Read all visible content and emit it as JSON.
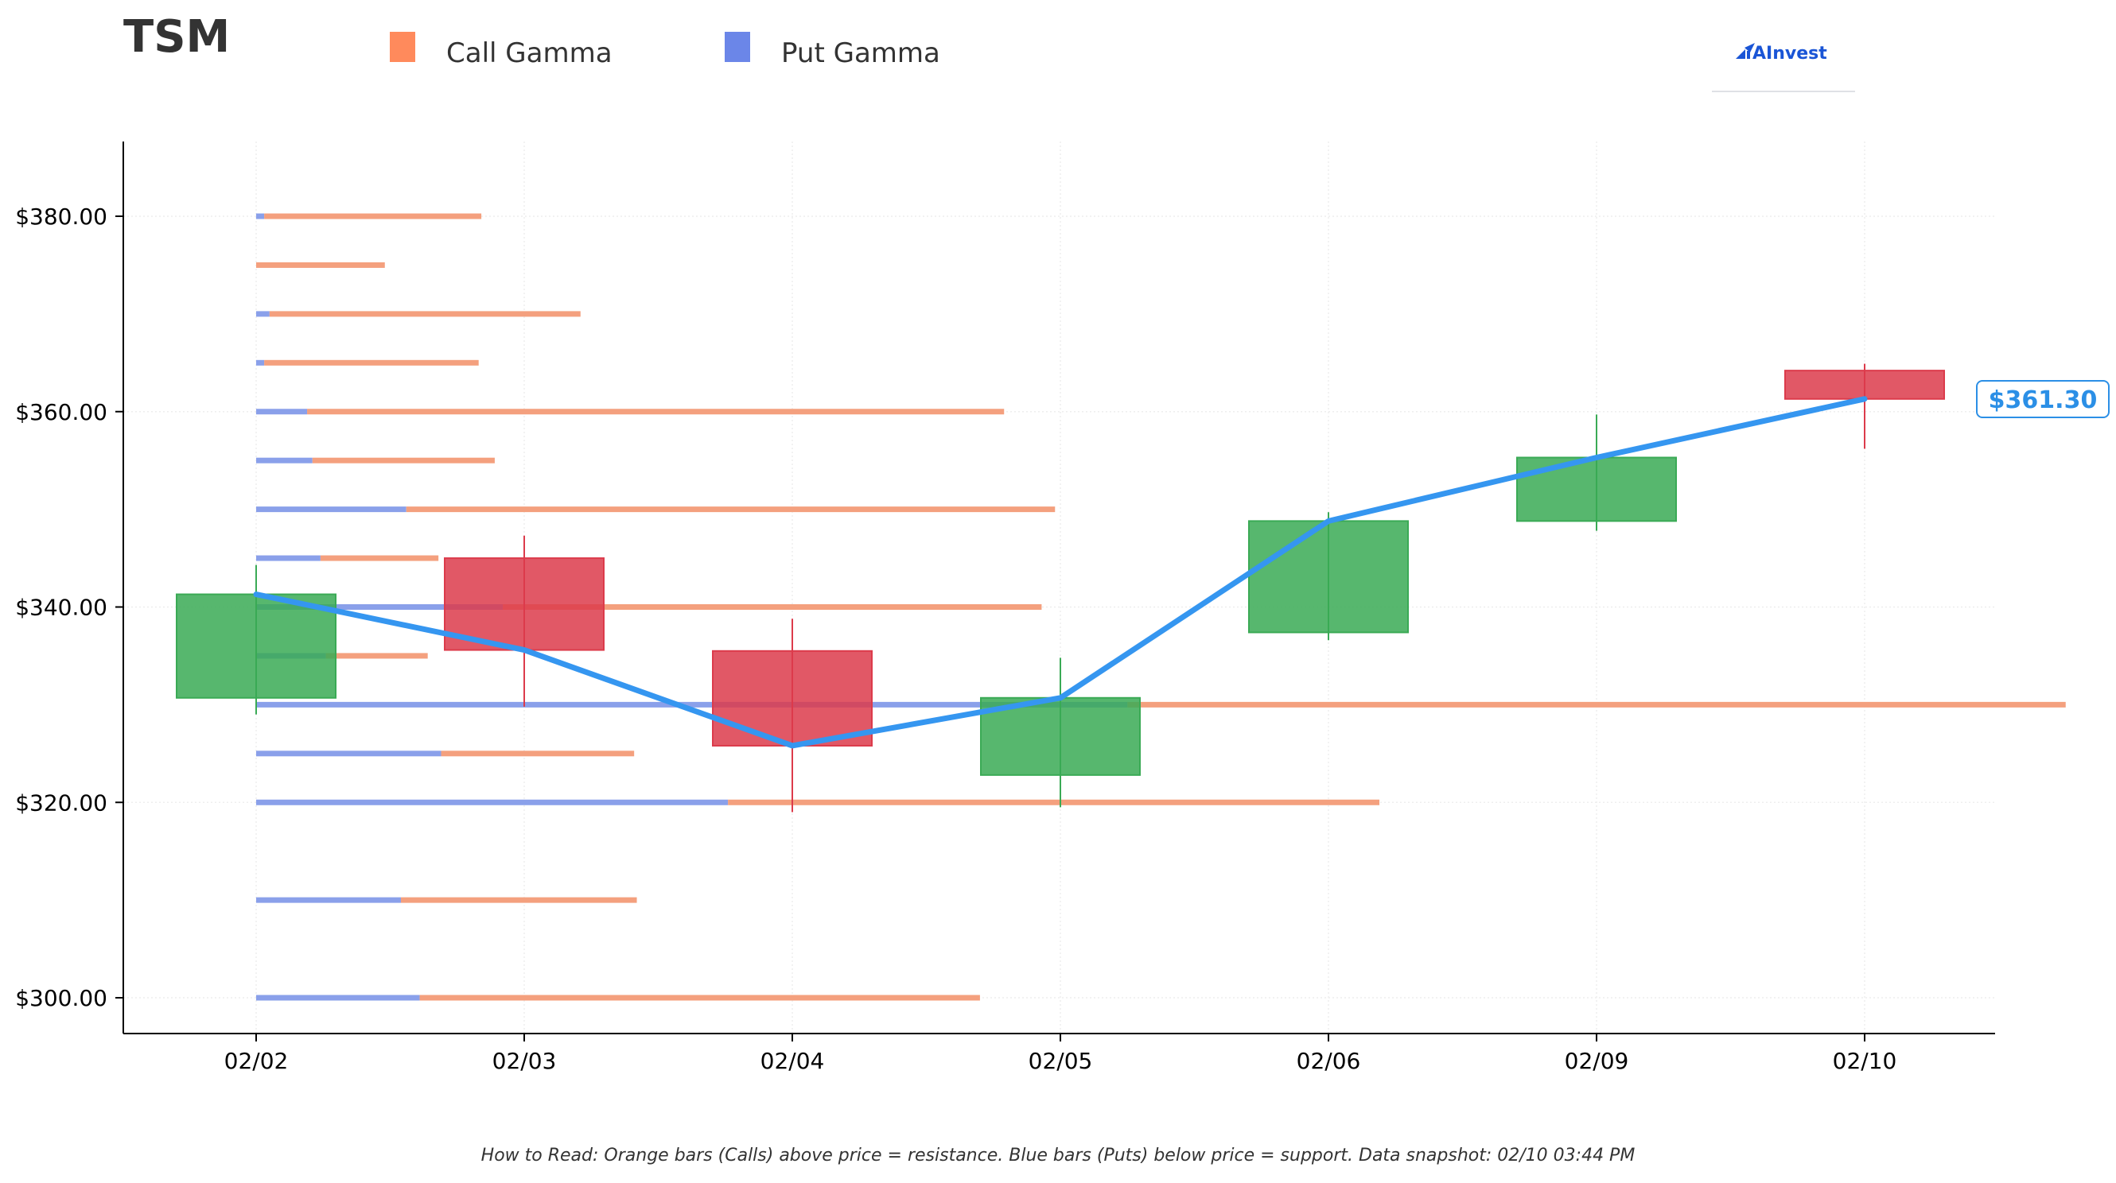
{
  "title": "TSM",
  "legend": {
    "items": [
      {
        "label": "Call Gamma",
        "color": "#ff8a5c"
      },
      {
        "label": "Put Gamma",
        "color": "#6b86e8"
      }
    ]
  },
  "logo": {
    "text": "AInvest",
    "icon": "ainvest-logo-icon",
    "color": "#1a55d6"
  },
  "price_label": "$361.30",
  "footer_note": "How to Read: Orange bars (Calls) above price = resistance. Blue bars (Puts) below price = support. Data snapshot: 02/10 03:44 PM",
  "colors": {
    "call": "#f4a07e",
    "put": "#8aa0ea",
    "up": "#3aaa55",
    "down": "#dc3b4b",
    "price_line": "#3596f0"
  },
  "chart_data": {
    "type": "candlestick",
    "categories": [
      "02/02",
      "02/03",
      "02/04",
      "02/05",
      "02/06",
      "02/09",
      "02/10"
    ],
    "ylim": [
      291,
      382
    ],
    "yticks": [
      "$300.00",
      "$320.00",
      "$340.00",
      "$360.00",
      "$380.00"
    ],
    "ytick_values": [
      300,
      320,
      340,
      360,
      380
    ],
    "grid": true,
    "candles": [
      {
        "date": "02/02",
        "open": 330.7,
        "close": 341.3,
        "high": 344.3,
        "low": 329.0
      },
      {
        "date": "02/03",
        "open": 345.0,
        "close": 335.6,
        "high": 347.3,
        "low": 329.8
      },
      {
        "date": "02/04",
        "open": 335.5,
        "close": 325.8,
        "high": 338.8,
        "low": 319.0
      },
      {
        "date": "02/05",
        "open": 322.8,
        "close": 330.7,
        "high": 334.8,
        "low": 319.5
      },
      {
        "date": "02/06",
        "open": 337.4,
        "close": 348.8,
        "high": 349.7,
        "low": 336.6
      },
      {
        "date": "02/09",
        "open": 348.8,
        "close": 355.3,
        "high": 359.7,
        "low": 347.8
      },
      {
        "date": "02/10",
        "open": 364.2,
        "close": 361.3,
        "high": 364.9,
        "low": 356.2
      }
    ],
    "price_line": {
      "name": "Price",
      "values": [
        341.3,
        335.6,
        325.8,
        330.7,
        348.8,
        355.3,
        361.3
      ]
    },
    "gamma_levels": [
      {
        "strike": 380,
        "put": 0.03,
        "call": 0.81
      },
      {
        "strike": 375,
        "put": 0.0,
        "call": 0.48
      },
      {
        "strike": 370,
        "put": 0.05,
        "call": 1.16
      },
      {
        "strike": 365,
        "put": 0.03,
        "call": 0.8
      },
      {
        "strike": 360,
        "put": 0.19,
        "call": 2.6
      },
      {
        "strike": 355,
        "put": 0.21,
        "call": 0.68
      },
      {
        "strike": 350,
        "put": 0.56,
        "call": 2.42
      },
      {
        "strike": 345,
        "put": 0.24,
        "call": 0.44
      },
      {
        "strike": 340,
        "put": 0.92,
        "call": 2.01
      },
      {
        "strike": 335,
        "put": 0.26,
        "call": 0.38
      },
      {
        "strike": 330,
        "put": 3.25,
        "call": 3.5
      },
      {
        "strike": 325,
        "put": 0.69,
        "call": 0.72
      },
      {
        "strike": 320,
        "put": 1.76,
        "call": 2.43
      },
      {
        "strike": 310,
        "put": 0.54,
        "call": 0.88
      },
      {
        "strike": 300,
        "put": 0.61,
        "call": 2.09
      }
    ]
  }
}
